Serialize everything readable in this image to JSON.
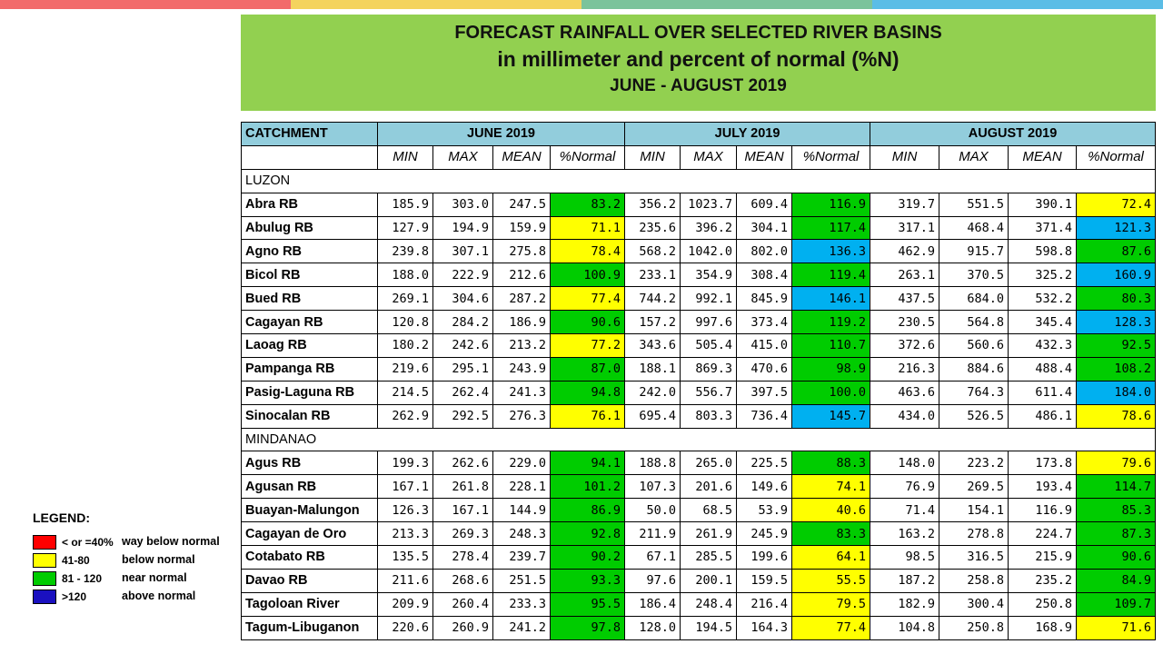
{
  "colors": {
    "topbar": [
      "#f26b6b",
      "#f4d35e",
      "#7bc39b",
      "#5bbde6"
    ],
    "title_bg": "#92d050",
    "header_bg": "#92cddc",
    "legend": {
      "red": "#ff0000",
      "yellow": "#ffff00",
      "green": "#00cc00",
      "blue": "#00b0f0",
      "dark_blue": "#1a10c0"
    }
  },
  "title": {
    "line1": "FORECAST RAINFALL OVER SELECTED RIVER BASINS",
    "line2": "in millimeter  and percent of normal (%N)",
    "line3": "JUNE - AUGUST 2019"
  },
  "table": {
    "catchment_label": "CATCHMENT",
    "months": [
      "JUNE 2019",
      "JULY 2019",
      "AUGUST 2019"
    ],
    "subheaders": [
      "MIN",
      "MAX",
      "MEAN",
      "%Normal"
    ],
    "sections": [
      {
        "name": "LUZON",
        "rows": [
          {
            "name": "Abra RB",
            "cells": [
              [
                "185.9",
                "303.0",
                "247.5",
                "83.2",
                "green"
              ],
              [
                "356.2",
                "1023.7",
                "609.4",
                "116.9",
                "green"
              ],
              [
                "319.7",
                "551.5",
                "390.1",
                "72.4",
                "yellow"
              ]
            ]
          },
          {
            "name": "Abulug RB",
            "cells": [
              [
                "127.9",
                "194.9",
                "159.9",
                "71.1",
                "yellow"
              ],
              [
                "235.6",
                "396.2",
                "304.1",
                "117.4",
                "green"
              ],
              [
                "317.1",
                "468.4",
                "371.4",
                "121.3",
                "blue"
              ]
            ]
          },
          {
            "name": "Agno RB",
            "cells": [
              [
                "239.8",
                "307.1",
                "275.8",
                "78.4",
                "yellow"
              ],
              [
                "568.2",
                "1042.0",
                "802.0",
                "136.3",
                "blue"
              ],
              [
                "462.9",
                "915.7",
                "598.8",
                "87.6",
                "green"
              ]
            ]
          },
          {
            "name": "Bicol RB",
            "cells": [
              [
                "188.0",
                "222.9",
                "212.6",
                "100.9",
                "green"
              ],
              [
                "233.1",
                "354.9",
                "308.4",
                "119.4",
                "green"
              ],
              [
                "263.1",
                "370.5",
                "325.2",
                "160.9",
                "blue"
              ]
            ]
          },
          {
            "name": "Bued RB",
            "cells": [
              [
                "269.1",
                "304.6",
                "287.2",
                "77.4",
                "yellow"
              ],
              [
                "744.2",
                "992.1",
                "845.9",
                "146.1",
                "blue"
              ],
              [
                "437.5",
                "684.0",
                "532.2",
                "80.3",
                "green"
              ]
            ]
          },
          {
            "name": "Cagayan RB",
            "cells": [
              [
                "120.8",
                "284.2",
                "186.9",
                "90.6",
                "green"
              ],
              [
                "157.2",
                "997.6",
                "373.4",
                "119.2",
                "green"
              ],
              [
                "230.5",
                "564.8",
                "345.4",
                "128.3",
                "blue"
              ]
            ]
          },
          {
            "name": "Laoag RB",
            "cells": [
              [
                "180.2",
                "242.6",
                "213.2",
                "77.2",
                "yellow"
              ],
              [
                "343.6",
                "505.4",
                "415.0",
                "110.7",
                "green"
              ],
              [
                "372.6",
                "560.6",
                "432.3",
                "92.5",
                "green"
              ]
            ]
          },
          {
            "name": "Pampanga RB",
            "cells": [
              [
                "219.6",
                "295.1",
                "243.9",
                "87.0",
                "green"
              ],
              [
                "188.1",
                "869.3",
                "470.6",
                "98.9",
                "green"
              ],
              [
                "216.3",
                "884.6",
                "488.4",
                "108.2",
                "green"
              ]
            ]
          },
          {
            "name": "Pasig-Laguna RB",
            "cells": [
              [
                "214.5",
                "262.4",
                "241.3",
                "94.8",
                "green"
              ],
              [
                "242.0",
                "556.7",
                "397.5",
                "100.0",
                "green"
              ],
              [
                "463.6",
                "764.3",
                "611.4",
                "184.0",
                "blue"
              ]
            ]
          },
          {
            "name": "Sinocalan RB",
            "cells": [
              [
                "262.9",
                "292.5",
                "276.3",
                "76.1",
                "yellow"
              ],
              [
                "695.4",
                "803.3",
                "736.4",
                "145.7",
                "blue"
              ],
              [
                "434.0",
                "526.5",
                "486.1",
                "78.6",
                "yellow"
              ]
            ]
          }
        ]
      },
      {
        "name": "MINDANAO",
        "rows": [
          {
            "name": "Agus RB",
            "cells": [
              [
                "199.3",
                "262.6",
                "229.0",
                "94.1",
                "green"
              ],
              [
                "188.8",
                "265.0",
                "225.5",
                "88.3",
                "green"
              ],
              [
                "148.0",
                "223.2",
                "173.8",
                "79.6",
                "yellow"
              ]
            ]
          },
          {
            "name": "Agusan RB",
            "cells": [
              [
                "167.1",
                "261.8",
                "228.1",
                "101.2",
                "green"
              ],
              [
                "107.3",
                "201.6",
                "149.6",
                "74.1",
                "yellow"
              ],
              [
                "76.9",
                "269.5",
                "193.4",
                "114.7",
                "green"
              ]
            ]
          },
          {
            "name": "Buayan-Malungon",
            "cells": [
              [
                "126.3",
                "167.1",
                "144.9",
                "86.9",
                "green"
              ],
              [
                "50.0",
                "68.5",
                "53.9",
                "40.6",
                "yellow"
              ],
              [
                "71.4",
                "154.1",
                "116.9",
                "85.3",
                "green"
              ]
            ]
          },
          {
            "name": "Cagayan de Oro",
            "cells": [
              [
                "213.3",
                "269.3",
                "248.3",
                "92.8",
                "green"
              ],
              [
                "211.9",
                "261.9",
                "245.9",
                "83.3",
                "green"
              ],
              [
                "163.2",
                "278.8",
                "224.7",
                "87.3",
                "green"
              ]
            ]
          },
          {
            "name": "Cotabato RB",
            "cells": [
              [
                "135.5",
                "278.4",
                "239.7",
                "90.2",
                "green"
              ],
              [
                "67.1",
                "285.5",
                "199.6",
                "64.1",
                "yellow"
              ],
              [
                "98.5",
                "316.5",
                "215.9",
                "90.6",
                "green"
              ]
            ]
          },
          {
            "name": "Davao RB",
            "cells": [
              [
                "211.6",
                "268.6",
                "251.5",
                "93.3",
                "green"
              ],
              [
                "97.6",
                "200.1",
                "159.5",
                "55.5",
                "yellow"
              ],
              [
                "187.2",
                "258.8",
                "235.2",
                "84.9",
                "green"
              ]
            ]
          },
          {
            "name": "Tagoloan River",
            "cells": [
              [
                "209.9",
                "260.4",
                "233.3",
                "95.5",
                "green"
              ],
              [
                "186.4",
                "248.4",
                "216.4",
                "79.5",
                "yellow"
              ],
              [
                "182.9",
                "300.4",
                "250.8",
                "109.7",
                "green"
              ]
            ]
          },
          {
            "name": "Tagum-Libuganon",
            "cells": [
              [
                "220.6",
                "260.9",
                "241.2",
                "97.8",
                "green"
              ],
              [
                "128.0",
                "194.5",
                "164.3",
                "77.4",
                "yellow"
              ],
              [
                "104.8",
                "250.8",
                "168.9",
                "71.6",
                "yellow"
              ]
            ]
          }
        ]
      }
    ]
  },
  "legend": {
    "title": "LEGEND:",
    "items": [
      {
        "range": "< or =40%",
        "label": "way below normal",
        "color": "red"
      },
      {
        "range": "41-80",
        "label": "below normal",
        "color": "yellow"
      },
      {
        "range": "81 - 120",
        "label": "near normal",
        "color": "green"
      },
      {
        "range": ">120",
        "label": "above normal",
        "color": "dark_blue"
      }
    ]
  }
}
